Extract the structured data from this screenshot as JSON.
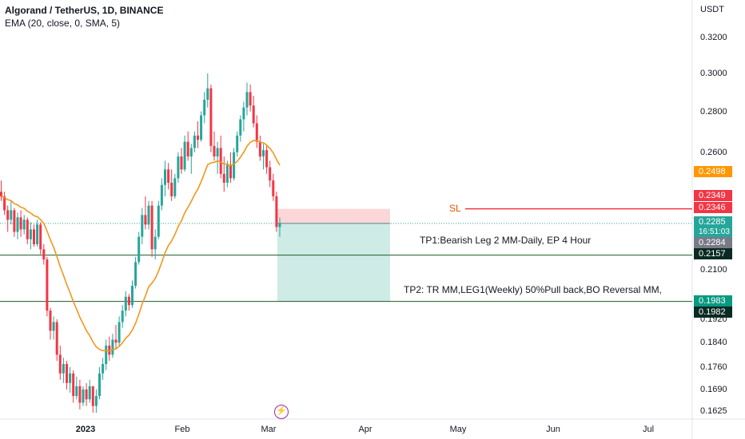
{
  "header": {
    "title": "Algorand / TetherUS, 1D, BINANCE",
    "indicator": "EMA (20, close, 0, SMA, 5)"
  },
  "axis": {
    "unit": "USDT",
    "y_ticks": [
      "0.3200",
      "0.3000",
      "0.2800",
      "0.2600",
      "0.2100",
      "0.1920",
      "0.1840",
      "0.1760",
      "0.1690",
      "0.1625"
    ],
    "x_ticks": [
      {
        "label": "2023",
        "bold": true
      },
      {
        "label": "Feb",
        "bold": false
      },
      {
        "label": "Mar",
        "bold": false
      },
      {
        "label": "Apr",
        "bold": false
      },
      {
        "label": "May",
        "bold": false
      },
      {
        "label": "Jun",
        "bold": false
      },
      {
        "label": "Jul",
        "bold": false
      }
    ]
  },
  "price_badges": {
    "ema": {
      "value": "0.2498",
      "color": "#ff9800"
    },
    "sl_top": {
      "value": "0.2349",
      "color": "#f23645"
    },
    "sl": {
      "value": "0.2346",
      "color": "#f23645"
    },
    "last": {
      "value": "0.2285",
      "countdown": "16:51:03",
      "color": "#26a69a"
    },
    "prev": {
      "value": "0.2284",
      "color": "#787b86"
    },
    "tp1": {
      "value": "0.2157",
      "color": "#0a2a22"
    },
    "tp2_a": {
      "value": "0.1983",
      "color": "#089981"
    },
    "tp2_b": {
      "value": "0.1982",
      "color": "#0a2a22"
    }
  },
  "annotations": {
    "sl_label": "SL",
    "tp1_text": "TP1:Bearish Leg 2 MM-Daily, EP 4 Hour",
    "tp2_text": "TP2: TR MM,LEG1(Weekly) 50%Pull back,BO Reversal MM,"
  },
  "icons": {
    "event": "lightning-icon"
  },
  "colors": {
    "up": "#26a69a",
    "down": "#f23645",
    "ema": "#f2961d",
    "level_line": "#1b5e20",
    "sl_line": "#f23645"
  },
  "chart_data": {
    "type": "candlestick",
    "timeframe": "1D",
    "series_name": "Algorand / TetherUS",
    "y_range": [
      0.16,
      0.325
    ],
    "y_scale": "log",
    "levels": {
      "sl": 0.2346,
      "entry": 0.2285,
      "tp1": 0.2157,
      "tp2": 0.1983
    },
    "ema_period": 20,
    "candles": [
      [
        0.242,
        0.247,
        0.238,
        0.24
      ],
      [
        0.24,
        0.242,
        0.232,
        0.234
      ],
      [
        0.234,
        0.236,
        0.225,
        0.23
      ],
      [
        0.23,
        0.238,
        0.228,
        0.234
      ],
      [
        0.234,
        0.235,
        0.223,
        0.225
      ],
      [
        0.225,
        0.233,
        0.222,
        0.231
      ],
      [
        0.231,
        0.234,
        0.223,
        0.226
      ],
      [
        0.226,
        0.232,
        0.224,
        0.23
      ],
      [
        0.23,
        0.231,
        0.22,
        0.222
      ],
      [
        0.222,
        0.229,
        0.218,
        0.226
      ],
      [
        0.226,
        0.228,
        0.219,
        0.22
      ],
      [
        0.22,
        0.23,
        0.219,
        0.228
      ],
      [
        0.228,
        0.229,
        0.216,
        0.218
      ],
      [
        0.218,
        0.22,
        0.212,
        0.214
      ],
      [
        0.214,
        0.215,
        0.193,
        0.195
      ],
      [
        0.195,
        0.196,
        0.185,
        0.188
      ],
      [
        0.188,
        0.193,
        0.185,
        0.191
      ],
      [
        0.191,
        0.192,
        0.178,
        0.18
      ],
      [
        0.18,
        0.183,
        0.172,
        0.174
      ],
      [
        0.174,
        0.179,
        0.171,
        0.177
      ],
      [
        0.177,
        0.178,
        0.169,
        0.171
      ],
      [
        0.171,
        0.176,
        0.168,
        0.174
      ],
      [
        0.174,
        0.175,
        0.165,
        0.167
      ],
      [
        0.167,
        0.173,
        0.166,
        0.17
      ],
      [
        0.17,
        0.172,
        0.163,
        0.165
      ],
      [
        0.165,
        0.17,
        0.164,
        0.169
      ],
      [
        0.169,
        0.171,
        0.164,
        0.166
      ],
      [
        0.166,
        0.172,
        0.165,
        0.17
      ],
      [
        0.17,
        0.17,
        0.162,
        0.164
      ],
      [
        0.164,
        0.169,
        0.162,
        0.167
      ],
      [
        0.167,
        0.176,
        0.166,
        0.174
      ],
      [
        0.174,
        0.179,
        0.172,
        0.177
      ],
      [
        0.177,
        0.185,
        0.175,
        0.183
      ],
      [
        0.183,
        0.186,
        0.178,
        0.18
      ],
      [
        0.18,
        0.187,
        0.179,
        0.185
      ],
      [
        0.185,
        0.19,
        0.182,
        0.184
      ],
      [
        0.184,
        0.193,
        0.183,
        0.191
      ],
      [
        0.191,
        0.197,
        0.189,
        0.195
      ],
      [
        0.195,
        0.202,
        0.193,
        0.2
      ],
      [
        0.2,
        0.201,
        0.195,
        0.197
      ],
      [
        0.197,
        0.206,
        0.196,
        0.204
      ],
      [
        0.204,
        0.215,
        0.203,
        0.213
      ],
      [
        0.213,
        0.225,
        0.212,
        0.223
      ],
      [
        0.223,
        0.235,
        0.22,
        0.232
      ],
      [
        0.232,
        0.24,
        0.226,
        0.228
      ],
      [
        0.228,
        0.238,
        0.226,
        0.236
      ],
      [
        0.236,
        0.238,
        0.215,
        0.218
      ],
      [
        0.218,
        0.226,
        0.214,
        0.223
      ],
      [
        0.223,
        0.238,
        0.222,
        0.236
      ],
      [
        0.236,
        0.248,
        0.234,
        0.245
      ],
      [
        0.245,
        0.256,
        0.24,
        0.252
      ],
      [
        0.252,
        0.255,
        0.243,
        0.246
      ],
      [
        0.246,
        0.252,
        0.238,
        0.24
      ],
      [
        0.24,
        0.25,
        0.239,
        0.248
      ],
      [
        0.248,
        0.26,
        0.246,
        0.258
      ],
      [
        0.258,
        0.262,
        0.25,
        0.252
      ],
      [
        0.252,
        0.268,
        0.251,
        0.265
      ],
      [
        0.265,
        0.27,
        0.256,
        0.258
      ],
      [
        0.258,
        0.264,
        0.25,
        0.262
      ],
      [
        0.262,
        0.27,
        0.26,
        0.268
      ],
      [
        0.268,
        0.275,
        0.262,
        0.266
      ],
      [
        0.266,
        0.28,
        0.265,
        0.278
      ],
      [
        0.278,
        0.29,
        0.274,
        0.286
      ],
      [
        0.286,
        0.3,
        0.282,
        0.292
      ],
      [
        0.292,
        0.294,
        0.26,
        0.263
      ],
      [
        0.263,
        0.27,
        0.256,
        0.258
      ],
      [
        0.258,
        0.265,
        0.25,
        0.262
      ],
      [
        0.262,
        0.268,
        0.248,
        0.25
      ],
      [
        0.25,
        0.258,
        0.242,
        0.246
      ],
      [
        0.246,
        0.256,
        0.244,
        0.254
      ],
      [
        0.254,
        0.26,
        0.246,
        0.248
      ],
      [
        0.248,
        0.262,
        0.247,
        0.26
      ],
      [
        0.26,
        0.27,
        0.258,
        0.268
      ],
      [
        0.268,
        0.278,
        0.265,
        0.276
      ],
      [
        0.276,
        0.285,
        0.27,
        0.282
      ],
      [
        0.282,
        0.295,
        0.278,
        0.29
      ],
      [
        0.29,
        0.294,
        0.28,
        0.283
      ],
      [
        0.283,
        0.288,
        0.272,
        0.274
      ],
      [
        0.274,
        0.278,
        0.262,
        0.265
      ],
      [
        0.265,
        0.268,
        0.256,
        0.258
      ],
      [
        0.258,
        0.264,
        0.252,
        0.261
      ],
      [
        0.261,
        0.263,
        0.25,
        0.253
      ],
      [
        0.253,
        0.256,
        0.244,
        0.247
      ],
      [
        0.247,
        0.25,
        0.238,
        0.24
      ],
      [
        0.24,
        0.242,
        0.225,
        0.227
      ],
      [
        0.227,
        0.231,
        0.223,
        0.2285
      ]
    ]
  }
}
